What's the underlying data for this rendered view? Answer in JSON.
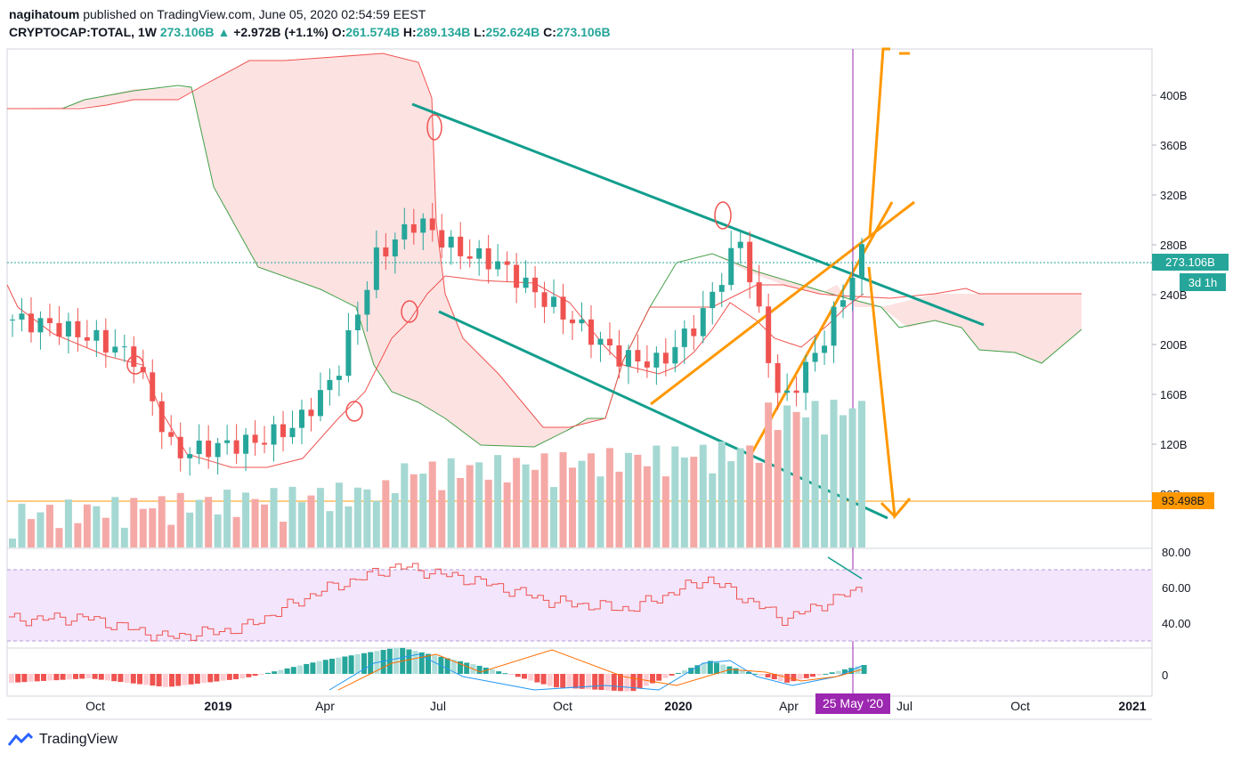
{
  "header": {
    "author": "nagihatoum",
    "published_text": "published on TradingView.com, June 05, 2020 02:54:59 EEST",
    "symbol": "CRYPTOCAP:TOTAL, 1W",
    "last": "273.106B",
    "change_arrow": "▲",
    "change": "+2.972B (+1.1%)",
    "o_label": "O:",
    "o": "261.574B",
    "h_label": "H:",
    "h": "289.134B",
    "l_label": "L:",
    "l": "252.624B",
    "c_label": "C:",
    "c": "273.106B"
  },
  "footer": {
    "brand": "TradingView",
    "logo_icon": "tradingview-logo-icon"
  },
  "price_axis": {
    "ticks": [
      "400B",
      "360B",
      "320B",
      "280B",
      "240B",
      "200B",
      "160B",
      "120B",
      "80B"
    ],
    "last_price_label": "273.106B",
    "countdown_label": "3d 1h",
    "horizontal_level_label": "93.498B",
    "last_price_color": "#26a69a",
    "level_color": "#ff9800"
  },
  "rsi_axis": {
    "ticks": [
      "80.00",
      "60.00",
      "40.00"
    ]
  },
  "macd_axis": {
    "ticks": [
      "0"
    ]
  },
  "time_axis": {
    "labels": [
      "Oct",
      "2019",
      "Apr",
      "Jul",
      "Oct",
      "2020",
      "Apr",
      "Jul",
      "Oct",
      "2021"
    ],
    "crosshair_label": "25 May '20"
  },
  "colors": {
    "up": "#26a69a",
    "down": "#ef5350",
    "cloud": "#fde2e2",
    "trend_channel": "#129e8d",
    "wedge": "#ff9800",
    "rsi_band": "#f3e5fb",
    "crosshair": "#9c27b0"
  },
  "chart_data": [
    {
      "type": "candlestick",
      "timeframe": "1W",
      "x": [
        "2018-08",
        "2018-09",
        "2018-10",
        "2018-11",
        "2018-12",
        "2019-01",
        "2019-02",
        "2019-03",
        "2019-04",
        "2019-05",
        "2019-06",
        "2019-07",
        "2019-08",
        "2019-09",
        "2019-10",
        "2019-11",
        "2019-12",
        "2020-01",
        "2020-02",
        "2020-03",
        "2020-04",
        "2020-05"
      ],
      "close": [
        220,
        215,
        205,
        190,
        112,
        118,
        122,
        135,
        175,
        270,
        300,
        275,
        265,
        240,
        215,
        190,
        185,
        220,
        285,
        150,
        200,
        273.106
      ],
      "ylim": [
        80,
        420
      ],
      "ylabel": "",
      "horizontal_level": 93.498,
      "last_price": 273.106
    },
    {
      "type": "line",
      "name": "",
      "x": [
        "2018-08",
        "2018-10",
        "2018-12",
        "2019-02",
        "2019-04",
        "2019-06",
        "2019-08",
        "2019-10",
        "2019-12",
        "2020-02",
        "2020-04",
        "2020-05"
      ],
      "values": [
        42,
        43,
        32,
        37,
        58,
        72,
        64,
        52,
        48,
        65,
        42,
        60
      ],
      "band": [
        30,
        70
      ],
      "ylim": [
        25,
        82
      ]
    },
    {
      "type": "bar",
      "name": "",
      "x": [
        "2018-08",
        "2018-10",
        "2018-12",
        "2019-02",
        "2019-04",
        "2019-06",
        "2019-08",
        "2019-10",
        "2019-12",
        "2020-02",
        "2020-04",
        "2020-05"
      ],
      "values": [
        -2,
        -1,
        -3,
        -1,
        3,
        6,
        2,
        -3,
        -4,
        3,
        -2,
        2
      ]
    }
  ]
}
